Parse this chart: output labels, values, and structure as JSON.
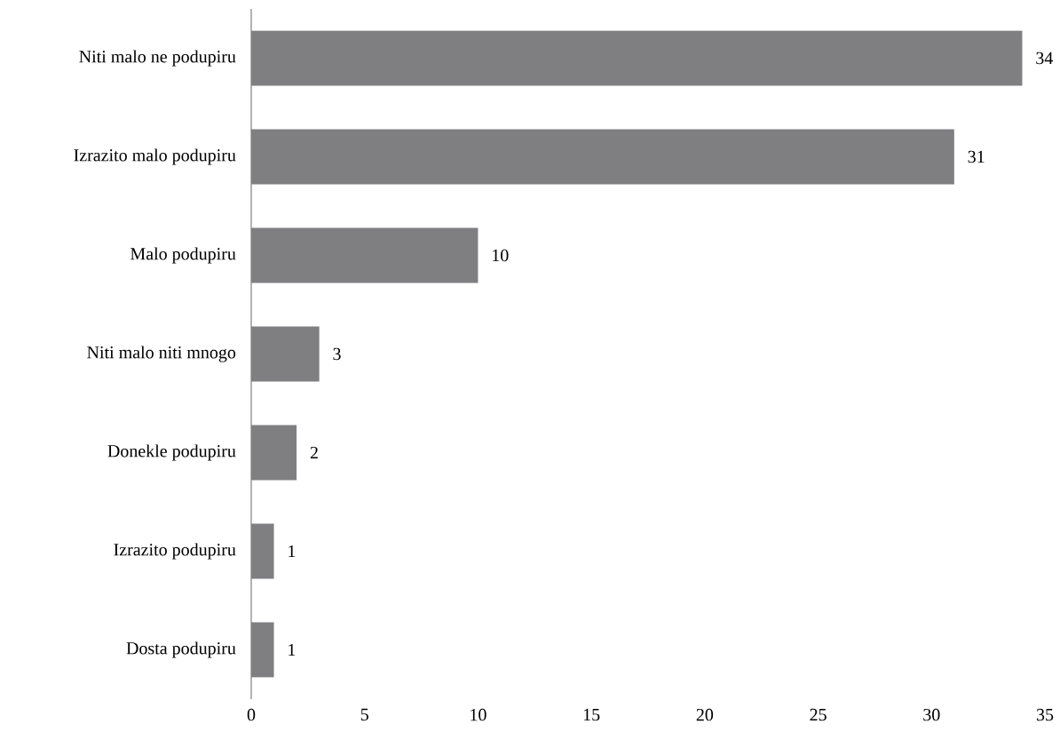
{
  "chart_data": {
    "type": "bar",
    "orientation": "horizontal",
    "categories": [
      "Niti malo ne podupiru",
      "Izrazito malo podupiru",
      "Malo podupiru",
      "Niti malo niti mnogo",
      "Donekle podupiru",
      "Izrazito podupiru",
      "Dosta podupiru"
    ],
    "values": [
      34,
      31,
      10,
      3,
      2,
      1,
      1
    ],
    "color": "#7f7f82",
    "xlim": [
      0,
      35
    ],
    "xticks": [
      0,
      5,
      10,
      15,
      20,
      25,
      30,
      35
    ],
    "data_labels": true,
    "grid": false
  }
}
